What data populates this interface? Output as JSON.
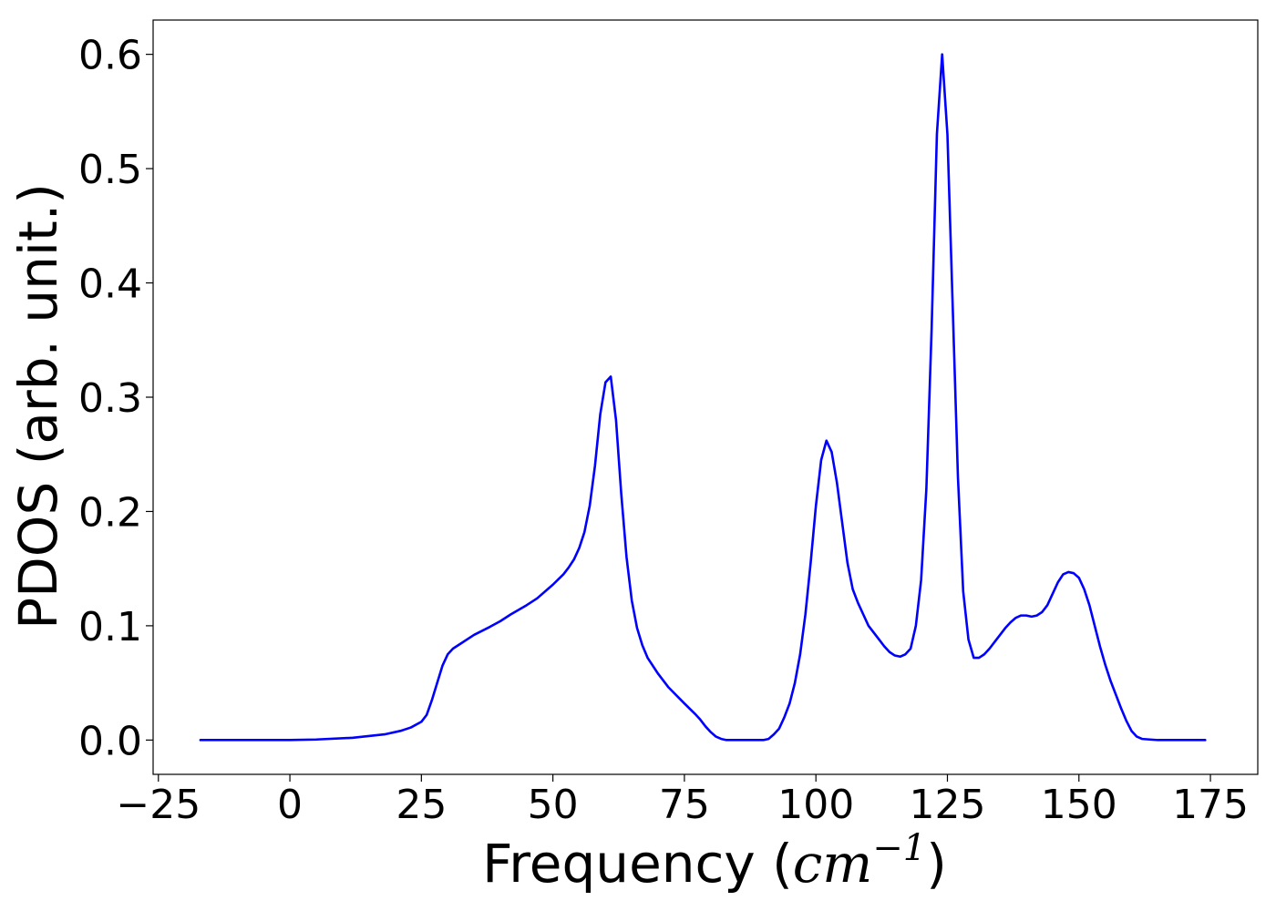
{
  "chart_data": {
    "type": "line",
    "title": "",
    "xlabel": "Frequency (cm⁻¹)",
    "xlabel_parts": {
      "prefix": "Frequency (",
      "unit_base": "cm",
      "unit_exp": "−1",
      "suffix": ")"
    },
    "ylabel": "PDOS (arb. unit.)",
    "xlim": [
      -26,
      184
    ],
    "ylim": [
      -0.03,
      0.63
    ],
    "xticks": [
      -25,
      0,
      25,
      50,
      75,
      100,
      125,
      150,
      175
    ],
    "xtick_labels": [
      "−25",
      "0",
      "25",
      "50",
      "75",
      "100",
      "125",
      "150",
      "175"
    ],
    "yticks": [
      0.0,
      0.1,
      0.2,
      0.3,
      0.4,
      0.5,
      0.6
    ],
    "ytick_labels": [
      "0.0",
      "0.1",
      "0.2",
      "0.3",
      "0.4",
      "0.5",
      "0.6"
    ],
    "grid": false,
    "legend": "none",
    "series": [
      {
        "color": "#0000ff",
        "x": [
          -17,
          0,
          5,
          12,
          18,
          21,
          23,
          25,
          26,
          27,
          28,
          29,
          30,
          31,
          32,
          35,
          38,
          40,
          42,
          45,
          47,
          50,
          52,
          53,
          54,
          55,
          56,
          57,
          58,
          59,
          60,
          61,
          62,
          63,
          64,
          65,
          66,
          67,
          68,
          70,
          72,
          75,
          77,
          78,
          79,
          80,
          81,
          82,
          83,
          85,
          88,
          90,
          91,
          92,
          93,
          94,
          95,
          96,
          97,
          98,
          99,
          100,
          101,
          102,
          103,
          104,
          105,
          106,
          107,
          108,
          109,
          110,
          112,
          113,
          114,
          115,
          116,
          117,
          118,
          119,
          120,
          121,
          122,
          123,
          124,
          125,
          126,
          127,
          128,
          129,
          130,
          131,
          132,
          133,
          134,
          135,
          136,
          137,
          138,
          139,
          140,
          141,
          142,
          143,
          144,
          145,
          146,
          147,
          148,
          149,
          150,
          151,
          152,
          153,
          154,
          155,
          156,
          157,
          158,
          159,
          160,
          161,
          162,
          165,
          174
        ],
        "y": [
          0.0,
          0.0,
          0.0005,
          0.002,
          0.005,
          0.008,
          0.011,
          0.016,
          0.022,
          0.035,
          0.05,
          0.065,
          0.075,
          0.08,
          0.083,
          0.092,
          0.099,
          0.104,
          0.11,
          0.118,
          0.124,
          0.136,
          0.145,
          0.151,
          0.158,
          0.168,
          0.182,
          0.205,
          0.24,
          0.285,
          0.313,
          0.318,
          0.28,
          0.215,
          0.16,
          0.122,
          0.098,
          0.083,
          0.072,
          0.058,
          0.046,
          0.032,
          0.023,
          0.018,
          0.012,
          0.007,
          0.003,
          0.001,
          0.0,
          0.0,
          0.0,
          0.0,
          0.001,
          0.005,
          0.01,
          0.02,
          0.032,
          0.05,
          0.075,
          0.11,
          0.155,
          0.205,
          0.245,
          0.262,
          0.252,
          0.225,
          0.19,
          0.155,
          0.132,
          0.12,
          0.11,
          0.1,
          0.088,
          0.082,
          0.077,
          0.074,
          0.073,
          0.075,
          0.08,
          0.1,
          0.14,
          0.22,
          0.36,
          0.53,
          0.6,
          0.53,
          0.38,
          0.23,
          0.13,
          0.088,
          0.072,
          0.072,
          0.075,
          0.08,
          0.086,
          0.092,
          0.098,
          0.103,
          0.107,
          0.109,
          0.109,
          0.108,
          0.109,
          0.112,
          0.118,
          0.128,
          0.138,
          0.145,
          0.147,
          0.146,
          0.142,
          0.132,
          0.118,
          0.1,
          0.082,
          0.066,
          0.052,
          0.04,
          0.028,
          0.017,
          0.008,
          0.003,
          0.001,
          0.0,
          0.0
        ]
      }
    ]
  }
}
